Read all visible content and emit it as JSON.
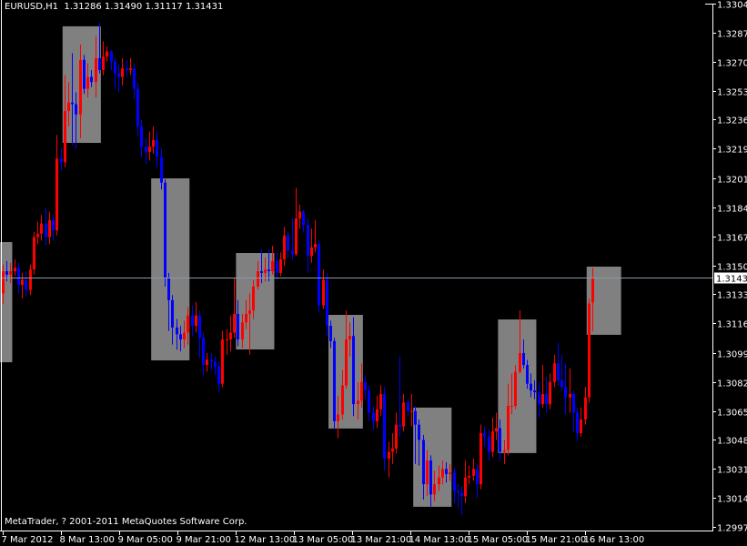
{
  "header": {
    "symbol": "EURUSD,H1",
    "ohlc": "1.31286 1.31490 1.31117 1.31431"
  },
  "footer": {
    "copyright": "MetaTrader, ? 2001-2011 MetaQuotes Software Corp."
  },
  "colors": {
    "background": "#000000",
    "bull": "#ff0000",
    "bear": "#0000ff",
    "box": "#808080",
    "axis": "#ffffff",
    "price_line": "#8a9aa8"
  },
  "chart_data": {
    "type": "candlestick",
    "symbol": "EURUSD",
    "timeframe": "H1",
    "ylim": [
      1.2997,
      1.3304
    ],
    "y_ticks": [
      "1.33040",
      "1.32870",
      "1.32700",
      "1.32530",
      "1.32360",
      "1.32190",
      "1.32015",
      "1.31845",
      "1.31675",
      "1.31505",
      "1.31335",
      "1.31165",
      "1.30990",
      "1.30820",
      "1.30650",
      "1.30480",
      "1.30310",
      "1.30140",
      "1.29970"
    ],
    "x_ticks": [
      "7 Mar 2012",
      "8 Mar 13:00",
      "9 Mar 05:00",
      "9 Mar 21:00",
      "12 Mar 13:00",
      "13 Mar 05:00",
      "13 Mar 21:00",
      "14 Mar 13:00",
      "15 Mar 05:00",
      "15 Mar 21:00",
      "16 Mar 13:00"
    ],
    "current_price": "1.31431",
    "grid": false,
    "candles_ohlc": [
      [
        1.3134,
        1.3151,
        1.3128,
        1.3147
      ],
      [
        1.3147,
        1.3153,
        1.3141,
        1.3145
      ],
      [
        1.3145,
        1.3152,
        1.314,
        1.3147
      ],
      [
        1.3147,
        1.3154,
        1.3144,
        1.3149
      ],
      [
        1.3149,
        1.3152,
        1.3134,
        1.3139
      ],
      [
        1.3139,
        1.3146,
        1.3131,
        1.3142
      ],
      [
        1.3142,
        1.3147,
        1.3132,
        1.3136
      ],
      [
        1.3136,
        1.3151,
        1.3133,
        1.3148
      ],
      [
        1.3148,
        1.317,
        1.3145,
        1.3167
      ],
      [
        1.3167,
        1.3176,
        1.3163,
        1.3169
      ],
      [
        1.3169,
        1.318,
        1.3165,
        1.3175
      ],
      [
        1.3175,
        1.3184,
        1.3162,
        1.3167
      ],
      [
        1.3167,
        1.3182,
        1.3163,
        1.3177
      ],
      [
        1.3177,
        1.318,
        1.3165,
        1.3171
      ],
      [
        1.3171,
        1.3227,
        1.3168,
        1.3213
      ],
      [
        1.3213,
        1.3219,
        1.3206,
        1.3211
      ],
      [
        1.3211,
        1.3262,
        1.3208,
        1.3241
      ],
      [
        1.3241,
        1.3258,
        1.3232,
        1.3246
      ],
      [
        1.3246,
        1.3275,
        1.3221,
        1.3245
      ],
      [
        1.3245,
        1.3252,
        1.3219,
        1.3239
      ],
      [
        1.3239,
        1.328,
        1.3225,
        1.3271
      ],
      [
        1.3271,
        1.3274,
        1.3251,
        1.3254
      ],
      [
        1.3254,
        1.3269,
        1.3249,
        1.3261
      ],
      [
        1.3261,
        1.3265,
        1.3255,
        1.3258
      ],
      [
        1.3258,
        1.3285,
        1.3249,
        1.3272
      ],
      [
        1.3272,
        1.3293,
        1.3263,
        1.3265
      ],
      [
        1.3265,
        1.3282,
        1.3262,
        1.3273
      ],
      [
        1.3273,
        1.3279,
        1.327,
        1.3276
      ],
      [
        1.3276,
        1.3277,
        1.3265,
        1.327
      ],
      [
        1.327,
        1.3272,
        1.3254,
        1.3263
      ],
      [
        1.3263,
        1.3268,
        1.3252,
        1.3261
      ],
      [
        1.3261,
        1.3272,
        1.3256,
        1.3266
      ],
      [
        1.3266,
        1.3271,
        1.3261,
        1.3265
      ],
      [
        1.3265,
        1.3272,
        1.3262,
        1.3266
      ],
      [
        1.3266,
        1.3269,
        1.3248,
        1.3254
      ],
      [
        1.3254,
        1.3258,
        1.3226,
        1.3232
      ],
      [
        1.3232,
        1.3236,
        1.3214,
        1.322
      ],
      [
        1.322,
        1.3225,
        1.321,
        1.3217
      ],
      [
        1.3217,
        1.3229,
        1.3212,
        1.322
      ],
      [
        1.322,
        1.3232,
        1.3216,
        1.3224
      ],
      [
        1.3224,
        1.3229,
        1.3208,
        1.3214
      ],
      [
        1.3214,
        1.3219,
        1.3195,
        1.3199
      ],
      [
        1.3199,
        1.3201,
        1.3138,
        1.3143
      ],
      [
        1.3143,
        1.3146,
        1.3112,
        1.313
      ],
      [
        1.313,
        1.3133,
        1.3104,
        1.3114
      ],
      [
        1.3114,
        1.3119,
        1.3101,
        1.311
      ],
      [
        1.311,
        1.3115,
        1.31,
        1.3107
      ],
      [
        1.3107,
        1.3118,
        1.3102,
        1.3111
      ],
      [
        1.3111,
        1.3126,
        1.3104,
        1.3121
      ],
      [
        1.3121,
        1.3127,
        1.3109,
        1.3115
      ],
      [
        1.3115,
        1.3129,
        1.3111,
        1.3121
      ],
      [
        1.3121,
        1.3124,
        1.3096,
        1.3108
      ],
      [
        1.3108,
        1.3111,
        1.3086,
        1.3092
      ],
      [
        1.3092,
        1.3099,
        1.3088,
        1.3095
      ],
      [
        1.3095,
        1.3099,
        1.3089,
        1.3094
      ],
      [
        1.3094,
        1.3097,
        1.3086,
        1.3091
      ],
      [
        1.3091,
        1.3094,
        1.3076,
        1.3081
      ],
      [
        1.3081,
        1.3112,
        1.3079,
        1.3107
      ],
      [
        1.3107,
        1.3113,
        1.3098,
        1.3107
      ],
      [
        1.3107,
        1.3121,
        1.31,
        1.3111
      ],
      [
        1.3111,
        1.3143,
        1.3108,
        1.3122
      ],
      [
        1.3122,
        1.313,
        1.3103,
        1.3107
      ],
      [
        1.3107,
        1.3122,
        1.3102,
        1.3117
      ],
      [
        1.3117,
        1.313,
        1.3113,
        1.3122
      ],
      [
        1.3122,
        1.3134,
        1.3098,
        1.3124
      ],
      [
        1.3124,
        1.3142,
        1.3119,
        1.3138
      ],
      [
        1.3138,
        1.3153,
        1.3136,
        1.3147
      ],
      [
        1.3147,
        1.316,
        1.314,
        1.3146
      ],
      [
        1.3146,
        1.3155,
        1.3141,
        1.3148
      ],
      [
        1.3148,
        1.316,
        1.3141,
        1.3147
      ],
      [
        1.3147,
        1.3162,
        1.3145,
        1.3153
      ],
      [
        1.3153,
        1.3158,
        1.3142,
        1.3146
      ],
      [
        1.3146,
        1.3158,
        1.3144,
        1.3154
      ],
      [
        1.3154,
        1.3173,
        1.315,
        1.3168
      ],
      [
        1.3168,
        1.317,
        1.3155,
        1.3159
      ],
      [
        1.3159,
        1.3178,
        1.3154,
        1.3157
      ],
      [
        1.3157,
        1.3196,
        1.3156,
        1.3178
      ],
      [
        1.3178,
        1.3186,
        1.3172,
        1.3182
      ],
      [
        1.3182,
        1.3183,
        1.317,
        1.3174
      ],
      [
        1.3174,
        1.3178,
        1.3146,
        1.3156
      ],
      [
        1.3156,
        1.3172,
        1.3152,
        1.3161
      ],
      [
        1.3161,
        1.3177,
        1.3158,
        1.3163
      ],
      [
        1.3163,
        1.3165,
        1.3123,
        1.3127
      ],
      [
        1.3127,
        1.3148,
        1.3125,
        1.3142
      ],
      [
        1.3142,
        1.3146,
        1.3109,
        1.3115
      ],
      [
        1.3115,
        1.3118,
        1.3102,
        1.3106
      ],
      [
        1.3106,
        1.3108,
        1.3054,
        1.3059
      ],
      [
        1.3059,
        1.3074,
        1.3049,
        1.3063
      ],
      [
        1.3063,
        1.3089,
        1.306,
        1.308
      ],
      [
        1.308,
        1.3124,
        1.3078,
        1.3107
      ],
      [
        1.3107,
        1.3117,
        1.3097,
        1.3109
      ],
      [
        1.3109,
        1.312,
        1.3062,
        1.3069
      ],
      [
        1.3069,
        1.3082,
        1.306,
        1.3071
      ],
      [
        1.3071,
        1.3093,
        1.3067,
        1.3082
      ],
      [
        1.3082,
        1.3086,
        1.3072,
        1.3077
      ],
      [
        1.3077,
        1.308,
        1.3059,
        1.3064
      ],
      [
        1.3064,
        1.3068,
        1.3054,
        1.3059
      ],
      [
        1.3059,
        1.3074,
        1.3055,
        1.3066
      ],
      [
        1.3066,
        1.308,
        1.3062,
        1.3075
      ],
      [
        1.3075,
        1.3079,
        1.303,
        1.3037
      ],
      [
        1.3037,
        1.3047,
        1.3026,
        1.3041
      ],
      [
        1.3041,
        1.3052,
        1.3034,
        1.3043
      ],
      [
        1.3043,
        1.3064,
        1.304,
        1.3057
      ],
      [
        1.3057,
        1.3097,
        1.305,
        1.3056
      ],
      [
        1.3056,
        1.3075,
        1.3053,
        1.307
      ],
      [
        1.307,
        1.3072,
        1.3062,
        1.3065
      ],
      [
        1.3065,
        1.3075,
        1.3056,
        1.3065
      ],
      [
        1.3065,
        1.3068,
        1.3034,
        1.3057
      ],
      [
        1.3057,
        1.306,
        1.3033,
        1.3048
      ],
      [
        1.3048,
        1.3051,
        1.3013,
        1.3022
      ],
      [
        1.3022,
        1.3042,
        1.3015,
        1.3036
      ],
      [
        1.3036,
        1.3039,
        1.3009,
        1.3016
      ],
      [
        1.3016,
        1.303,
        1.3012,
        1.3022
      ],
      [
        1.3022,
        1.3033,
        1.3018,
        1.3026
      ],
      [
        1.3026,
        1.3036,
        1.3022,
        1.3031
      ],
      [
        1.3031,
        1.3035,
        1.3023,
        1.3028
      ],
      [
        1.3028,
        1.3034,
        1.3024,
        1.3029
      ],
      [
        1.3029,
        1.3032,
        1.3011,
        1.3018
      ],
      [
        1.3018,
        1.3022,
        1.3008,
        1.3017
      ],
      [
        1.3017,
        1.3021,
        1.3004,
        1.3015
      ],
      [
        1.3015,
        1.3036,
        1.3011,
        1.3026
      ],
      [
        1.3026,
        1.3033,
        1.3022,
        1.3027
      ],
      [
        1.3027,
        1.3037,
        1.3024,
        1.3031
      ],
      [
        1.3031,
        1.3034,
        1.3014,
        1.3022
      ],
      [
        1.3022,
        1.3057,
        1.3019,
        1.3052
      ],
      [
        1.3052,
        1.3056,
        1.3044,
        1.305
      ],
      [
        1.305,
        1.3054,
        1.3036,
        1.3041
      ],
      [
        1.3041,
        1.3061,
        1.3038,
        1.3053
      ],
      [
        1.3053,
        1.3064,
        1.3048,
        1.3055
      ],
      [
        1.3055,
        1.306,
        1.3036,
        1.3041
      ],
      [
        1.3041,
        1.3048,
        1.3034,
        1.3042
      ],
      [
        1.3042,
        1.3081,
        1.3039,
        1.3068
      ],
      [
        1.3068,
        1.3087,
        1.3063,
        1.3068
      ],
      [
        1.3068,
        1.3092,
        1.3066,
        1.3088
      ],
      [
        1.3088,
        1.3124,
        1.3087,
        1.3099
      ],
      [
        1.3099,
        1.3107,
        1.309,
        1.3092
      ],
      [
        1.3092,
        1.3095,
        1.3078,
        1.3081
      ],
      [
        1.3081,
        1.3087,
        1.3073,
        1.3077
      ],
      [
        1.3077,
        1.3083,
        1.3072,
        1.3076
      ],
      [
        1.3076,
        1.3082,
        1.3061,
        1.3069
      ],
      [
        1.3069,
        1.3092,
        1.3067,
        1.3075
      ],
      [
        1.3075,
        1.3085,
        1.3064,
        1.3069
      ],
      [
        1.3069,
        1.3087,
        1.3066,
        1.3082
      ],
      [
        1.3082,
        1.3098,
        1.3079,
        1.3093
      ],
      [
        1.3093,
        1.3105,
        1.308,
        1.3083
      ],
      [
        1.3083,
        1.3098,
        1.3077,
        1.3079
      ],
      [
        1.3079,
        1.3093,
        1.3063,
        1.3073
      ],
      [
        1.3073,
        1.309,
        1.3064,
        1.3075
      ],
      [
        1.3075,
        1.3077,
        1.3053,
        1.3064
      ],
      [
        1.3064,
        1.3067,
        1.3047,
        1.3052
      ],
      [
        1.3052,
        1.3067,
        1.305,
        1.306
      ],
      [
        1.306,
        1.3079,
        1.3057,
        1.3073
      ],
      [
        1.3073,
        1.3131,
        1.307,
        1.3128
      ],
      [
        1.31286,
        1.3149,
        1.31117,
        1.31431
      ]
    ],
    "session_boxes": [
      {
        "start_bar": -1,
        "end_bar": 2,
        "high": 1.31641,
        "low": 1.30936
      },
      {
        "start_bar": 16,
        "end_bar": 25,
        "high": 1.32907,
        "low": 1.32223
      },
      {
        "start_bar": 39,
        "end_bar": 48,
        "high": 1.32015,
        "low": 1.30947
      },
      {
        "start_bar": 61,
        "end_bar": 70,
        "high": 1.31577,
        "low": 1.31011
      },
      {
        "start_bar": 85,
        "end_bar": 93,
        "high": 1.31214,
        "low": 1.30547
      },
      {
        "start_bar": 107,
        "end_bar": 116,
        "high": 1.3067,
        "low": 1.30088
      },
      {
        "start_bar": 129,
        "end_bar": 138,
        "high": 1.31187,
        "low": 1.30403
      },
      {
        "start_bar": 152,
        "end_bar": 160,
        "high": 1.31497,
        "low": 1.31097
      }
    ]
  }
}
